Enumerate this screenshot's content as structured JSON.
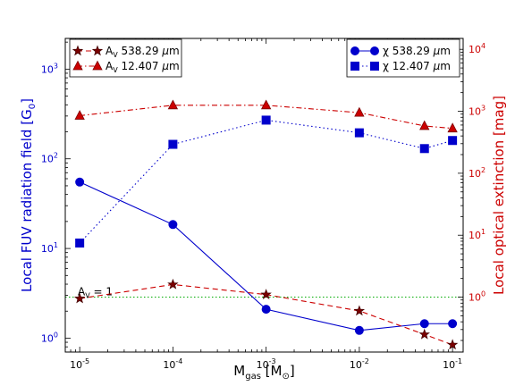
{
  "chart_data": {
    "type": "line",
    "x_scale": "log",
    "x": [
      1e-05,
      0.0001,
      0.001,
      0.01,
      0.05,
      0.1
    ],
    "xlim": [
      7e-06,
      0.13
    ],
    "x_tick_labels": {
      "mantissa": "10",
      "exponents": [
        "-5",
        "-4",
        "-3",
        "-2",
        "-1"
      ]
    },
    "xlabel": {
      "main": "M",
      "sub": "gas",
      "rest": " [M",
      "sun": "⊙",
      "close": "]"
    },
    "left_axis": {
      "label": "Local FUV radiation field [G",
      "label_sub": "0",
      "label_close": "]",
      "scale": "log",
      "ylim": [
        0.7,
        2200
      ],
      "color": "#0000cc",
      "tick_labels": [
        "10^0",
        "10^1",
        "10^2",
        "10^3"
      ]
    },
    "right_axis": {
      "label": "Local optical extinction [mag]",
      "scale": "log",
      "ylim": [
        0.13,
        15000
      ],
      "color": "#cc0000",
      "tick_labels": [
        "10^0",
        "10^1",
        "10^2",
        "10^3",
        "10^4"
      ]
    },
    "series": [
      {
        "name": "χ 538.29 μm",
        "axis": "left",
        "color": "#0000cc",
        "line": "solid",
        "marker": "circle",
        "values": [
          55,
          18.5,
          2.1,
          1.22,
          1.45,
          1.45
        ]
      },
      {
        "name": "χ 12.407 μm",
        "axis": "left",
        "color": "#0000cc",
        "line": "dotted",
        "marker": "square",
        "values": [
          11.5,
          145,
          270,
          195,
          130,
          160
        ]
      },
      {
        "name": "A_V 538.29 μm",
        "axis": "right",
        "color": "#cc0000",
        "fill": "#7a0000",
        "line": "dashed",
        "marker": "star",
        "values": [
          0.95,
          1.6,
          1.1,
          0.6,
          0.25,
          0.17
        ]
      },
      {
        "name": "A_V 12.407 μm",
        "axis": "right",
        "color": "#cc0000",
        "line": "dashdot",
        "marker": "triangle",
        "values": [
          850,
          1250,
          1250,
          950,
          580,
          530
        ]
      }
    ],
    "reference_line": {
      "axis": "right",
      "value": 1,
      "label_main": "A",
      "label_sub": "V",
      "label_rest": " = 1",
      "color": "#00aa00"
    },
    "legend_left": {
      "position": "top-left",
      "entries": [
        {
          "prefix": "A",
          "sub": "V",
          "suffix": " 538.29 ",
          "mu": "μ",
          "unit": "m",
          "series": 2
        },
        {
          "prefix": "A",
          "sub": "V",
          "suffix": " 12.407 ",
          "mu": "μ",
          "unit": "m",
          "series": 3
        }
      ]
    },
    "legend_right": {
      "position": "top-right",
      "entries": [
        {
          "prefix": "χ",
          "sub": "",
          "suffix": " 538.29 ",
          "mu": "μ",
          "unit": "m",
          "series": 0
        },
        {
          "prefix": "χ",
          "sub": "",
          "suffix": " 12.407 ",
          "mu": "μ",
          "unit": "m",
          "series": 1
        }
      ]
    }
  }
}
